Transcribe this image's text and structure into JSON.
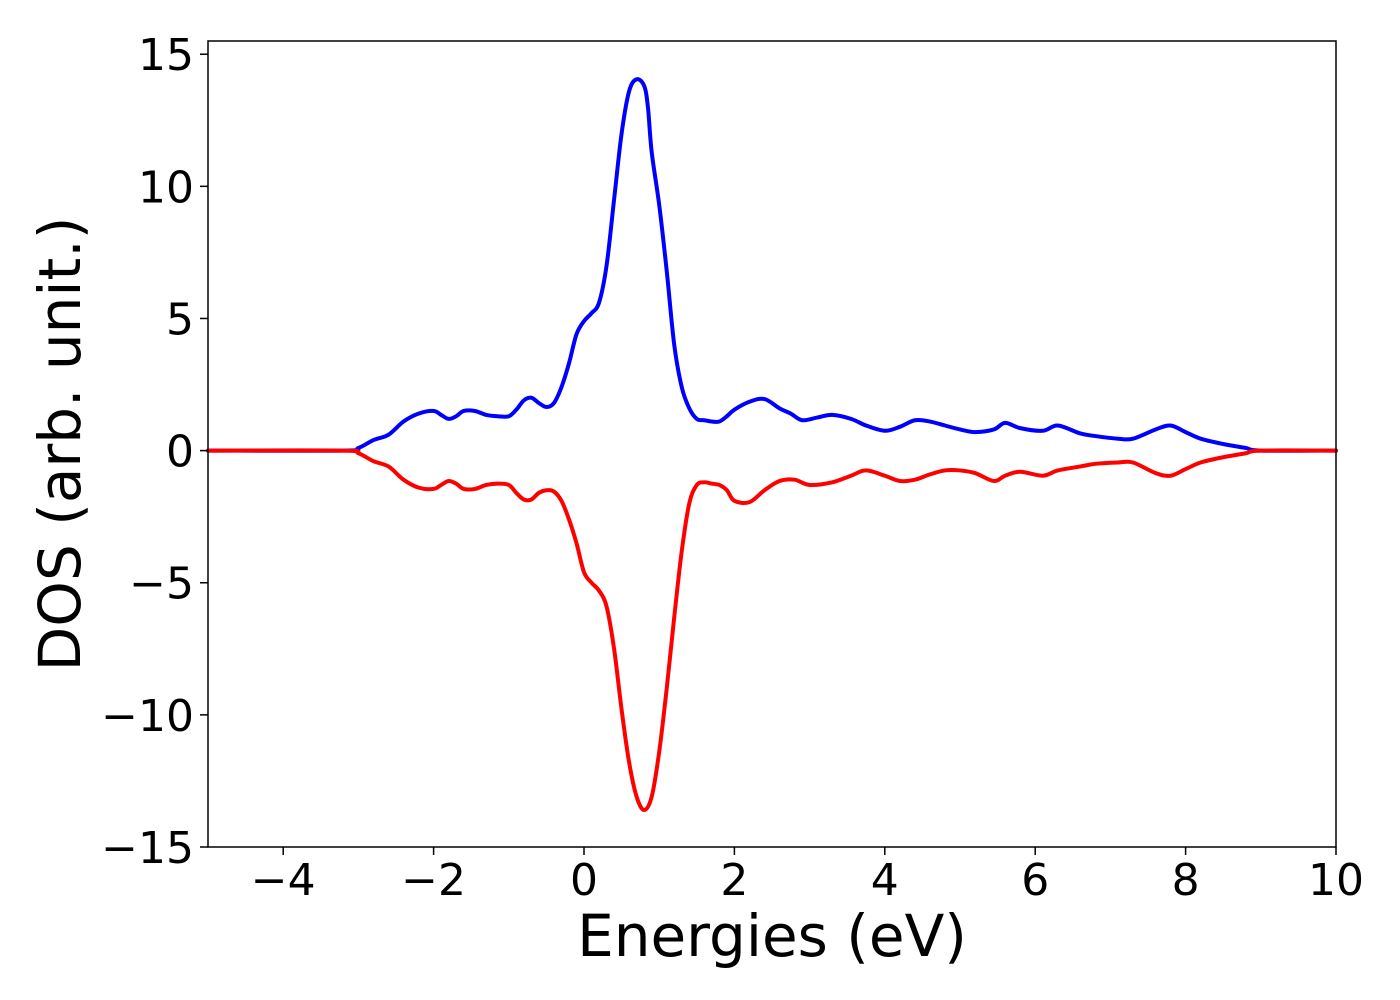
{
  "chart_data": {
    "type": "line",
    "title": "",
    "xlabel": "Energies (eV)",
    "ylabel": "DOS (arb. unit.)",
    "xlim": [
      -5,
      10
    ],
    "ylim": [
      -15,
      15.5
    ],
    "xticks": [
      -4,
      -2,
      0,
      2,
      4,
      6,
      8,
      10
    ],
    "xtick_labels": [
      "−4",
      "−2",
      "0",
      "2",
      "4",
      "6",
      "8",
      "10"
    ],
    "yticks": [
      -15,
      -10,
      -5,
      0,
      5,
      10,
      15
    ],
    "ytick_labels": [
      "−15",
      "−10",
      "−5",
      "0",
      "5",
      "10",
      "15"
    ],
    "grid": false,
    "legend": "none",
    "series": [
      {
        "color": "#0000ff",
        "x": [
          -5,
          -3.2,
          -3.0,
          -2.8,
          -2.6,
          -2.4,
          -2.2,
          -2.0,
          -1.9,
          -1.8,
          -1.7,
          -1.6,
          -1.45,
          -1.3,
          -1.15,
          -1.0,
          -0.9,
          -0.8,
          -0.7,
          -0.6,
          -0.5,
          -0.4,
          -0.3,
          -0.2,
          -0.1,
          0.0,
          0.1,
          0.2,
          0.3,
          0.4,
          0.5,
          0.6,
          0.7,
          0.8,
          0.85,
          0.9,
          1.0,
          1.1,
          1.2,
          1.3,
          1.4,
          1.5,
          1.6,
          1.7,
          1.8,
          1.9,
          2.0,
          2.2,
          2.4,
          2.6,
          2.75,
          2.9,
          3.1,
          3.3,
          3.55,
          3.75,
          4.0,
          4.2,
          4.4,
          4.6,
          4.8,
          5.0,
          5.2,
          5.45,
          5.6,
          5.8,
          6.1,
          6.3,
          6.6,
          6.8,
          7.1,
          7.3,
          7.6,
          7.8,
          8.0,
          8.2,
          8.5,
          8.8,
          9.0,
          10
        ],
        "y": [
          0,
          0,
          0.1,
          0.4,
          0.6,
          1.1,
          1.4,
          1.5,
          1.35,
          1.2,
          1.3,
          1.5,
          1.5,
          1.35,
          1.3,
          1.3,
          1.55,
          1.9,
          2.0,
          1.8,
          1.65,
          1.8,
          2.4,
          3.3,
          4.4,
          4.9,
          5.2,
          5.6,
          7.0,
          9.5,
          12.0,
          13.6,
          14.05,
          13.8,
          13.0,
          11.3,
          9.3,
          6.8,
          4.0,
          2.4,
          1.6,
          1.2,
          1.15,
          1.1,
          1.1,
          1.3,
          1.55,
          1.85,
          1.95,
          1.6,
          1.4,
          1.15,
          1.25,
          1.35,
          1.2,
          0.95,
          0.75,
          0.9,
          1.15,
          1.1,
          0.95,
          0.8,
          0.7,
          0.8,
          1.05,
          0.85,
          0.75,
          0.95,
          0.65,
          0.55,
          0.45,
          0.45,
          0.8,
          0.95,
          0.7,
          0.45,
          0.25,
          0.1,
          0,
          0
        ]
      },
      {
        "color": "#ff0000",
        "x": [
          -5,
          -3.2,
          -3.0,
          -2.8,
          -2.6,
          -2.4,
          -2.2,
          -2.0,
          -1.9,
          -1.8,
          -1.7,
          -1.6,
          -1.45,
          -1.3,
          -1.15,
          -1.0,
          -0.9,
          -0.8,
          -0.7,
          -0.6,
          -0.5,
          -0.4,
          -0.3,
          -0.2,
          -0.1,
          0.0,
          0.1,
          0.2,
          0.3,
          0.4,
          0.5,
          0.6,
          0.7,
          0.8,
          0.9,
          1.0,
          1.1,
          1.2,
          1.3,
          1.4,
          1.5,
          1.6,
          1.7,
          1.8,
          1.9,
          2.0,
          2.2,
          2.4,
          2.6,
          2.8,
          3.0,
          3.3,
          3.55,
          3.75,
          4.0,
          4.2,
          4.4,
          4.6,
          4.8,
          5.0,
          5.2,
          5.45,
          5.6,
          5.8,
          6.1,
          6.3,
          6.6,
          6.8,
          7.1,
          7.3,
          7.6,
          7.8,
          8.0,
          8.2,
          8.5,
          8.8,
          9.0,
          10
        ],
        "y": [
          0,
          0,
          -0.1,
          -0.4,
          -0.6,
          -1.1,
          -1.4,
          -1.45,
          -1.3,
          -1.15,
          -1.25,
          -1.45,
          -1.45,
          -1.3,
          -1.25,
          -1.3,
          -1.6,
          -1.85,
          -1.85,
          -1.6,
          -1.5,
          -1.55,
          -1.9,
          -2.6,
          -3.5,
          -4.6,
          -5.0,
          -5.3,
          -5.9,
          -7.5,
          -9.8,
          -11.8,
          -13.1,
          -13.6,
          -13.1,
          -11.4,
          -9.0,
          -6.3,
          -3.8,
          -2.0,
          -1.3,
          -1.2,
          -1.25,
          -1.3,
          -1.5,
          -1.9,
          -1.95,
          -1.5,
          -1.15,
          -1.1,
          -1.3,
          -1.2,
          -0.95,
          -0.75,
          -0.95,
          -1.15,
          -1.1,
          -0.9,
          -0.75,
          -0.75,
          -0.85,
          -1.15,
          -0.95,
          -0.8,
          -0.95,
          -0.75,
          -0.6,
          -0.5,
          -0.45,
          -0.45,
          -0.85,
          -0.95,
          -0.7,
          -0.45,
          -0.25,
          -0.1,
          0,
          0
        ]
      }
    ]
  }
}
